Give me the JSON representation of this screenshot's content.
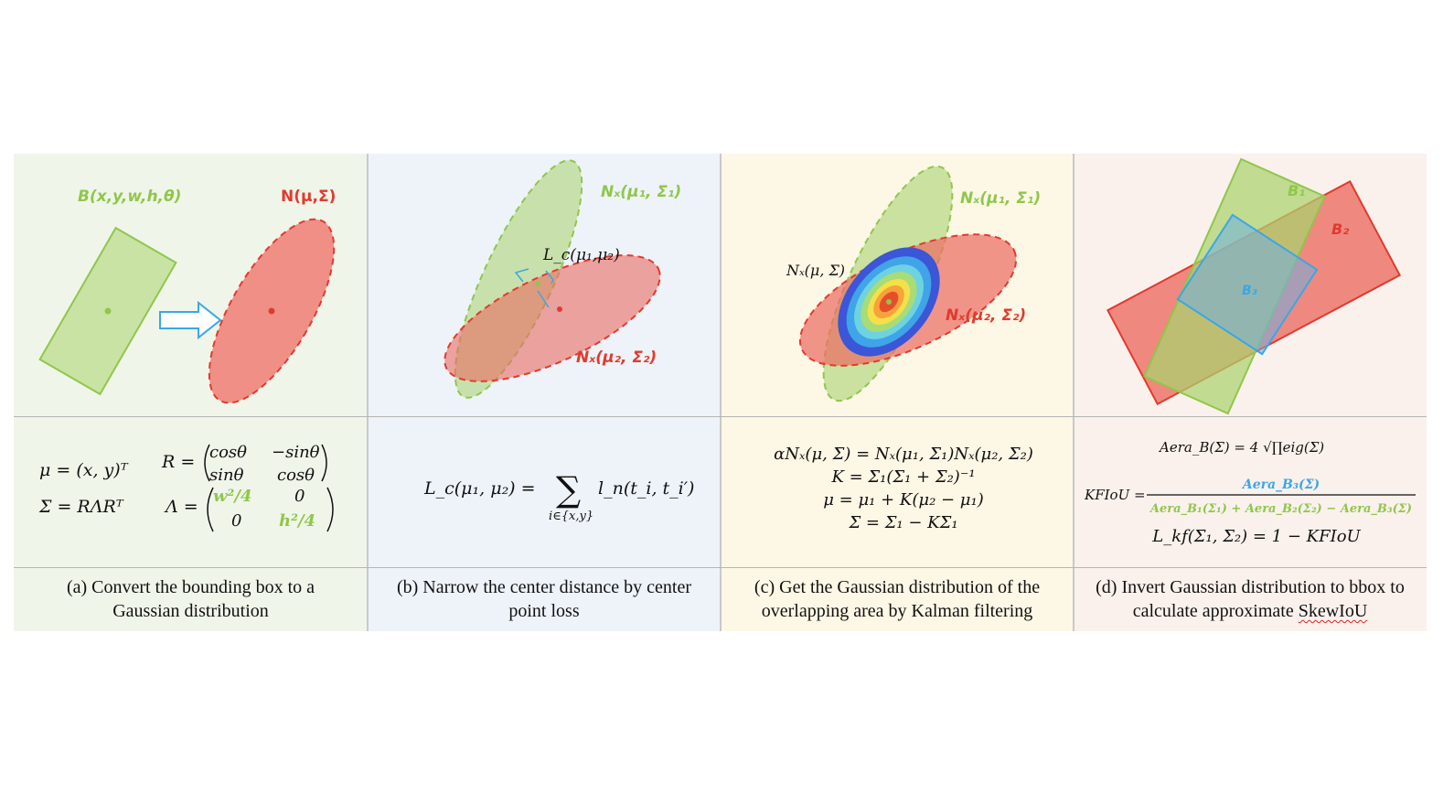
{
  "panels": [
    {
      "id": "a",
      "labels": {
        "box": "B(x,y,w,h,θ)",
        "gaussian": "N(μ,Σ)"
      },
      "formulas": {
        "mu": "μ = (x, y)ᵀ",
        "sigma": "Σ = RΛRᵀ",
        "R_eq": "R =",
        "R_m11": "cosθ",
        "R_m12": "−sinθ",
        "R_m21": "sinθ",
        "R_m22": "cosθ",
        "L_eq": "Λ =",
        "L_m11": "w²/4",
        "L_m12": "0",
        "L_m21": "0",
        "L_m22": "h²/4"
      },
      "caption_line1": "(a) Convert the bounding box to a",
      "caption_line2": "Gaussian distribution"
    },
    {
      "id": "b",
      "labels": {
        "n1": "Nₓ(μ₁, Σ₁)",
        "n2": "Nₓ(μ₂, Σ₂)",
        "lc": "L_c(μ₁,μ₂)"
      },
      "formulas": {
        "lhs": "L_c(μ₁, μ₂) =",
        "sum": "∑",
        "sub": "i∈{x,y}",
        "rhs": "l_n(t_i, t_i′)"
      },
      "caption_line1": "(b) Narrow the center distance by center",
      "caption_line2": "point loss"
    },
    {
      "id": "c",
      "labels": {
        "n": "Nₓ(μ, Σ)",
        "n1": "Nₓ(μ₁, Σ₁)",
        "n2": "Nₓ(μ₂, Σ₂)"
      },
      "formulas": {
        "f1": "αNₓ(μ, Σ) = Nₓ(μ₁, Σ₁)Nₓ(μ₂, Σ₂)",
        "f2": "K = Σ₁(Σ₁ + Σ₂)⁻¹",
        "f3": "μ = μ₁ + K(μ₂ − μ₁)",
        "f4": "Σ = Σ₁ − KΣ₁"
      },
      "caption_line1": "(c) Get the Gaussian distribution of the",
      "caption_line2": "overlapping area by Kalman filtering"
    },
    {
      "id": "d",
      "labels": {
        "b1": "B₁",
        "b2": "B₂",
        "b3": "B₃"
      },
      "formulas": {
        "area": "Aera_B(Σ) = 4 √∏eig(Σ)",
        "kf_lhs": "KFIoU =",
        "kf_num": "Aera_B₃(Σ)",
        "kf_den": "Aera_B₁(Σ₁) + Aera_B₂(Σ₂) − Aera_B₃(Σ)",
        "loss": "L_kf(Σ₁, Σ₂) = 1 − KFIoU"
      },
      "caption_line1": "(d) Invert Gaussian distribution to bbox to",
      "caption_line2_a": "calculate approximate ",
      "caption_line2_b": "SkewIoU"
    }
  ],
  "colors": {
    "green": "#8fc74a",
    "red": "#e23a2d",
    "blue": "#3aa7e6",
    "text": "#111111"
  }
}
